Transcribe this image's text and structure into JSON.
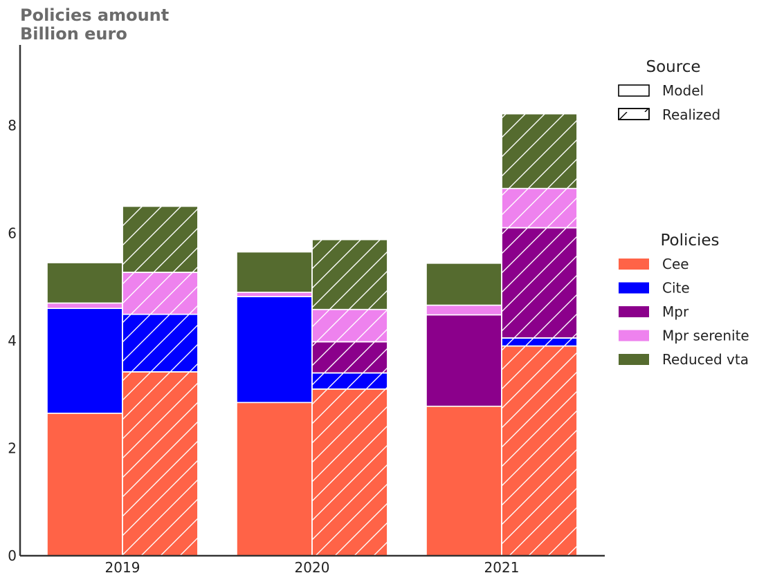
{
  "title_line1": "Policies amount",
  "title_line2": "Billion euro",
  "chart_data": {
    "type": "bar",
    "stacked": true,
    "title": "Policies amount",
    "ylabel": "Billion euro",
    "categories": [
      "2019",
      "2020",
      "2021"
    ],
    "sources": [
      "Model",
      "Realized"
    ],
    "ylim": [
      0,
      9.5
    ],
    "yticks": [
      0,
      2,
      4,
      6,
      8
    ],
    "grid": false,
    "legend_placement": "right",
    "series": [
      {
        "name": "Cee",
        "color": "#ff6347",
        "model": [
          2.65,
          2.85,
          2.78
        ],
        "realized": [
          3.42,
          3.1,
          3.9
        ]
      },
      {
        "name": "Cite",
        "color": "#0000ff",
        "model": [
          1.95,
          1.97,
          0.0
        ],
        "realized": [
          1.07,
          0.3,
          0.15
        ]
      },
      {
        "name": "Mpr",
        "color": "#8b008b",
        "model": [
          0.0,
          0.0,
          1.7
        ],
        "realized": [
          0.0,
          0.58,
          2.05
        ]
      },
      {
        "name": "Mpr serenite",
        "color": "#ee82ee",
        "model": [
          0.1,
          0.08,
          0.18
        ],
        "realized": [
          0.78,
          0.6,
          0.73
        ]
      },
      {
        "name": "Reduced vta",
        "color": "#556b2f",
        "model": [
          0.75,
          0.75,
          0.78
        ],
        "realized": [
          1.23,
          1.3,
          1.39
        ]
      }
    ]
  },
  "legend": {
    "source_title": "Source",
    "source_items": [
      "Model",
      "Realized"
    ],
    "policies_title": "Policies",
    "policy_items": [
      "Cee",
      "Cite",
      "Mpr",
      "Mpr serenite",
      "Reduced vta"
    ]
  }
}
